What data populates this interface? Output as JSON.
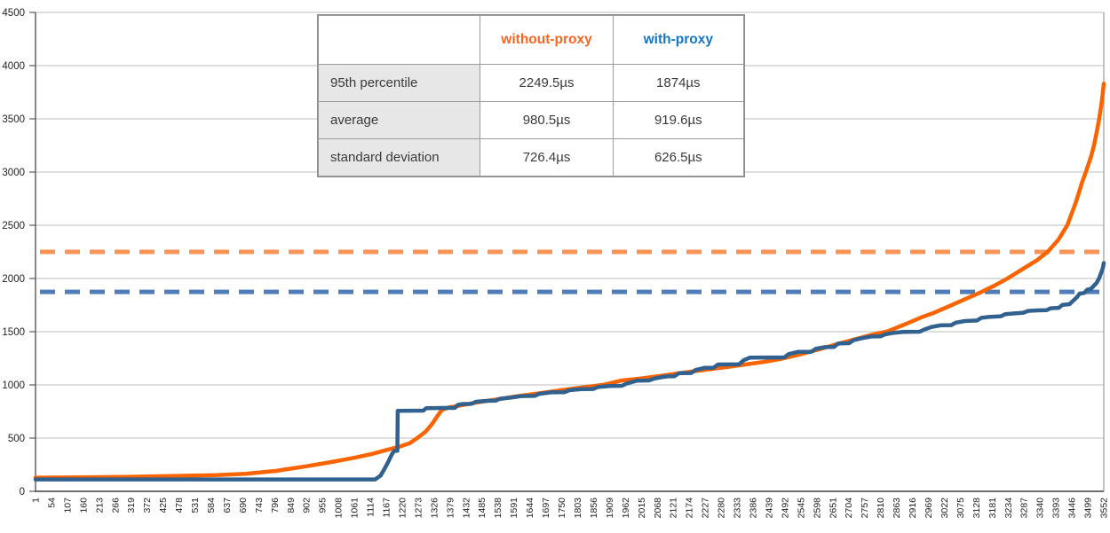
{
  "colors": {
    "without_proxy_line": "#FA6400",
    "with_proxy_line": "#30618F",
    "without_proxy_dash": "#FB9355",
    "with_proxy_dash": "#4E7DBA",
    "without_proxy_header_text": "#FB6420",
    "with_proxy_header_text": "#1176C9",
    "gridline": "#C9C9C9",
    "axis": "#595959",
    "plot_border": "#9B9B9B",
    "axis_label_text": "#222222",
    "shadow_gray": "#B2B2B2"
  },
  "table": {
    "columns": [
      "",
      "without-proxy",
      "with-proxy"
    ],
    "rows": [
      {
        "label": "95th percentile",
        "without": "2249.5µs",
        "with": "1874µs"
      },
      {
        "label": "average",
        "without": "980.5µs",
        "with": "919.6µs"
      },
      {
        "label": "standard deviation",
        "without": "726.4µs",
        "with": "626.5µs"
      }
    ]
  },
  "chart_data": {
    "type": "line",
    "title": "",
    "xlabel": "",
    "ylabel": "",
    "x_axis": "sorted request index (1 .. 3552)",
    "y_axis": "latency in microseconds",
    "ylim": [
      0,
      4500
    ],
    "y_ticks": [
      "0",
      "500",
      "1000",
      "1500",
      "2000",
      "2500",
      "3000",
      "3500",
      "4000",
      "4500"
    ],
    "x_range": [
      1,
      3552
    ],
    "x_label_interval": 53,
    "x_labels": [
      "1",
      "54",
      "107",
      "160",
      "213",
      "266",
      "319",
      "372",
      "425",
      "478",
      "531",
      "584",
      "637",
      "690",
      "743",
      "796",
      "849",
      "902",
      "955",
      "1008",
      "1061",
      "1114",
      "1167",
      "1220",
      "1273",
      "1326",
      "1379",
      "1432",
      "1485",
      "1538",
      "1591",
      "1644",
      "1697",
      "1750",
      "1803",
      "1856",
      "1909",
      "1962",
      "2015",
      "2068",
      "2121",
      "2174",
      "2227",
      "2280",
      "2333",
      "2386",
      "2439",
      "2492",
      "2545",
      "2598",
      "2651",
      "2704",
      "2757",
      "2810",
      "2863",
      "2916",
      "2969",
      "3022",
      "3075",
      "3128",
      "3181",
      "3234",
      "3287",
      "3340",
      "3393",
      "3446",
      "3499",
      "3552"
    ],
    "grid": true,
    "legend": "table overlay (no classic legend)",
    "reference_lines": [
      {
        "name": "95th percentile without-proxy",
        "value": 2249.5,
        "style": "dashed"
      },
      {
        "name": "95th percentile with-proxy",
        "value": 1874,
        "style": "dashed"
      }
    ],
    "series": [
      {
        "name": "without-proxy",
        "points": [
          [
            1,
            128
          ],
          [
            150,
            131
          ],
          [
            300,
            136
          ],
          [
            450,
            143
          ],
          [
            600,
            152
          ],
          [
            700,
            165
          ],
          [
            800,
            192
          ],
          [
            850,
            213
          ],
          [
            900,
            235
          ],
          [
            950,
            258
          ],
          [
            1000,
            283
          ],
          [
            1060,
            315
          ],
          [
            1120,
            352
          ],
          [
            1170,
            390
          ],
          [
            1210,
            418
          ],
          [
            1245,
            452
          ],
          [
            1272,
            505
          ],
          [
            1298,
            562
          ],
          [
            1318,
            628
          ],
          [
            1338,
            712
          ],
          [
            1352,
            765
          ],
          [
            1375,
            788
          ],
          [
            1420,
            810
          ],
          [
            1475,
            838
          ],
          [
            1530,
            862
          ],
          [
            1590,
            888
          ],
          [
            1650,
            912
          ],
          [
            1710,
            935
          ],
          [
            1770,
            958
          ],
          [
            1830,
            980
          ],
          [
            1890,
            1002
          ],
          [
            1950,
            1042
          ],
          [
            2010,
            1060
          ],
          [
            2070,
            1082
          ],
          [
            2130,
            1105
          ],
          [
            2190,
            1128
          ],
          [
            2250,
            1150
          ],
          [
            2310,
            1172
          ],
          [
            2370,
            1196
          ],
          [
            2420,
            1215
          ],
          [
            2480,
            1245
          ],
          [
            2540,
            1285
          ],
          [
            2600,
            1330
          ],
          [
            2660,
            1378
          ],
          [
            2720,
            1425
          ],
          [
            2780,
            1470
          ],
          [
            2835,
            1505
          ],
          [
            2900,
            1580
          ],
          [
            2950,
            1640
          ],
          [
            2982,
            1672
          ],
          [
            3040,
            1742
          ],
          [
            3090,
            1805
          ],
          [
            3144,
            1872
          ],
          [
            3190,
            1935
          ],
          [
            3233,
            2002
          ],
          [
            3280,
            2085
          ],
          [
            3330,
            2172
          ],
          [
            3366,
            2252
          ],
          [
            3400,
            2360
          ],
          [
            3431,
            2502
          ],
          [
            3460,
            2722
          ],
          [
            3480,
            2905
          ],
          [
            3493,
            3005
          ],
          [
            3510,
            3150
          ],
          [
            3520,
            3260
          ],
          [
            3528,
            3372
          ],
          [
            3536,
            3490
          ],
          [
            3543,
            3620
          ],
          [
            3548,
            3720
          ],
          [
            3552,
            3830
          ]
        ]
      },
      {
        "name": "with-proxy",
        "points": [
          [
            1,
            112
          ],
          [
            1130,
            112
          ],
          [
            1148,
            148
          ],
          [
            1160,
            205
          ],
          [
            1174,
            280
          ],
          [
            1186,
            352
          ],
          [
            1194,
            380
          ],
          [
            1204,
            382
          ],
          [
            1205,
            756
          ],
          [
            1290,
            758
          ],
          [
            1300,
            782
          ],
          [
            1395,
            784
          ],
          [
            1405,
            812
          ],
          [
            1420,
            820
          ],
          [
            1450,
            822
          ],
          [
            1465,
            842
          ],
          [
            1500,
            850
          ],
          [
            1530,
            852
          ],
          [
            1545,
            870
          ],
          [
            1580,
            880
          ],
          [
            1615,
            895
          ],
          [
            1660,
            897
          ],
          [
            1675,
            915
          ],
          [
            1715,
            930
          ],
          [
            1760,
            932
          ],
          [
            1775,
            950
          ],
          [
            1815,
            960
          ],
          [
            1855,
            962
          ],
          [
            1870,
            980
          ],
          [
            1910,
            990
          ],
          [
            1950,
            992
          ],
          [
            1965,
            1012
          ],
          [
            2000,
            1040
          ],
          [
            2040,
            1042
          ],
          [
            2060,
            1062
          ],
          [
            2100,
            1080
          ],
          [
            2125,
            1082
          ],
          [
            2140,
            1110
          ],
          [
            2180,
            1112
          ],
          [
            2195,
            1140
          ],
          [
            2225,
            1160
          ],
          [
            2255,
            1162
          ],
          [
            2270,
            1192
          ],
          [
            2340,
            1194
          ],
          [
            2355,
            1232
          ],
          [
            2375,
            1256
          ],
          [
            2490,
            1258
          ],
          [
            2505,
            1290
          ],
          [
            2535,
            1310
          ],
          [
            2580,
            1312
          ],
          [
            2595,
            1340
          ],
          [
            2625,
            1355
          ],
          [
            2655,
            1357
          ],
          [
            2670,
            1390
          ],
          [
            2705,
            1392
          ],
          [
            2720,
            1420
          ],
          [
            2750,
            1440
          ],
          [
            2780,
            1455
          ],
          [
            2810,
            1457
          ],
          [
            2825,
            1475
          ],
          [
            2855,
            1490
          ],
          [
            2885,
            1498
          ],
          [
            2940,
            1500
          ],
          [
            2955,
            1520
          ],
          [
            2980,
            1545
          ],
          [
            3010,
            1560
          ],
          [
            3045,
            1562
          ],
          [
            3060,
            1585
          ],
          [
            3090,
            1600
          ],
          [
            3130,
            1605
          ],
          [
            3145,
            1630
          ],
          [
            3175,
            1640
          ],
          [
            3210,
            1645
          ],
          [
            3225,
            1665
          ],
          [
            3255,
            1672
          ],
          [
            3285,
            1678
          ],
          [
            3300,
            1695
          ],
          [
            3330,
            1700
          ],
          [
            3362,
            1702
          ],
          [
            3375,
            1720
          ],
          [
            3402,
            1724
          ],
          [
            3415,
            1752
          ],
          [
            3438,
            1758
          ],
          [
            3450,
            1790
          ],
          [
            3462,
            1822
          ],
          [
            3472,
            1858
          ],
          [
            3487,
            1864
          ],
          [
            3497,
            1895
          ],
          [
            3508,
            1900
          ],
          [
            3518,
            1928
          ],
          [
            3528,
            1958
          ],
          [
            3537,
            2005
          ],
          [
            3544,
            2060
          ],
          [
            3549,
            2100
          ],
          [
            3552,
            2145
          ]
        ]
      }
    ]
  }
}
